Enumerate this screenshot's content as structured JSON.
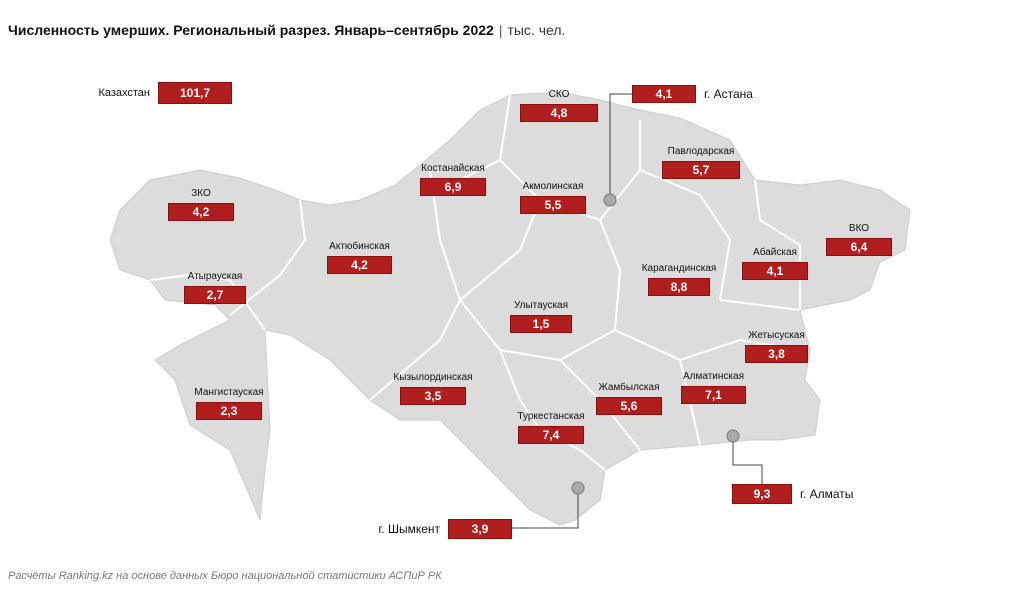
{
  "header": {
    "title": "Численность умерших. Региональный разрез. Январь–сентябрь 2022",
    "unit": "тыс. чел."
  },
  "total": {
    "name": "Казахстан",
    "value": "101,7"
  },
  "regions": [
    {
      "name": "СКО",
      "value": "4,8"
    },
    {
      "name": "г. Астана",
      "value": "4,1"
    },
    {
      "name": "Павлодарская",
      "value": "5,7"
    },
    {
      "name": "Костанайская",
      "value": "6,9"
    },
    {
      "name": "Акмолинская",
      "value": "5,5"
    },
    {
      "name": "ЗКО",
      "value": "4,2"
    },
    {
      "name": "Актюбинская",
      "value": "4,2"
    },
    {
      "name": "ВКО",
      "value": "6,4"
    },
    {
      "name": "Абайская",
      "value": "4,1"
    },
    {
      "name": "Карагандинская",
      "value": "8,8"
    },
    {
      "name": "Атырауская",
      "value": "2,7"
    },
    {
      "name": "Улытауская",
      "value": "1,5"
    },
    {
      "name": "Жетысуская",
      "value": "3,8"
    },
    {
      "name": "Кызылординская",
      "value": "3,5"
    },
    {
      "name": "Мангистауская",
      "value": "2,3"
    },
    {
      "name": "Жамбылская",
      "value": "5,6"
    },
    {
      "name": "Алматинская",
      "value": "7,1"
    },
    {
      "name": "Туркестанская",
      "value": "7,4"
    },
    {
      "name": "г. Алматы",
      "value": "9,3"
    },
    {
      "name": "г. Шымкент",
      "value": "3,9"
    }
  ],
  "source": "Расчёты Ranking.kz на основе данных Бюро национальной статистики АСПиР РК"
}
